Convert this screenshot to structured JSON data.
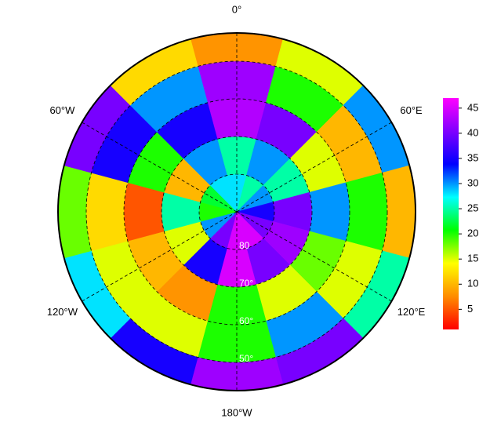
{
  "chart_data": {
    "type": "polar_heatmap",
    "latlim": [
      42.5,
      90
    ],
    "lat_bins": [
      90,
      80,
      70,
      60,
      50,
      42.5
    ],
    "lon_bins": [
      -15,
      15,
      45,
      75,
      105,
      135,
      165,
      195,
      225,
      255,
      285,
      315,
      345
    ],
    "values": [
      [
        28,
        25,
        30,
        35,
        40,
        45,
        45,
        40,
        30,
        20,
        22,
        28
      ],
      [
        25,
        30,
        25,
        40,
        42,
        40,
        45,
        35,
        15,
        25,
        10,
        30
      ],
      [
        43,
        40,
        15,
        30,
        18,
        15,
        20,
        8,
        10,
        5,
        20,
        35
      ],
      [
        42,
        20,
        10,
        20,
        15,
        30,
        20,
        15,
        15,
        12,
        35,
        30
      ],
      [
        8,
        15,
        30,
        10,
        25,
        40,
        42,
        35,
        28,
        18,
        40,
        12
      ]
    ],
    "lon_labels": [
      {
        "value": 0,
        "label": "0°"
      },
      {
        "value": 60,
        "label": "60°E"
      },
      {
        "value": 120,
        "label": "120°E"
      },
      {
        "value": 180,
        "label": "180°W"
      },
      {
        "value": -120,
        "label": "120°W"
      },
      {
        "value": -60,
        "label": "60°W"
      }
    ],
    "lat_labels": [
      80,
      {
        "value": 70,
        "label": "70°"
      },
      {
        "value": 60,
        "label": "60°"
      },
      {
        "value": 50,
        "label": "50°"
      }
    ],
    "zlim": [
      1,
      47
    ],
    "zticks": [
      5,
      10,
      15,
      20,
      25,
      30,
      35,
      40,
      45
    ],
    "colors": [
      "#ff0000",
      "#ff8c00",
      "#ffff00",
      "#00ff00",
      "#00ffff",
      "#0000ff",
      "#8000ff",
      "#ff00ff"
    ]
  }
}
